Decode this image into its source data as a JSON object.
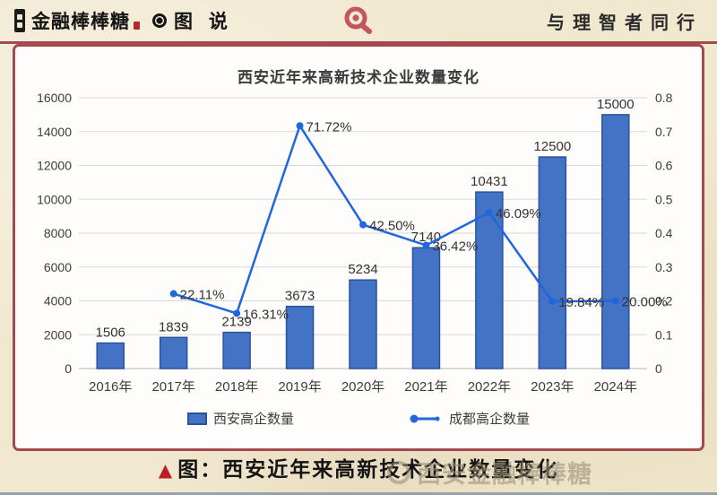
{
  "header": {
    "brand": "金融棒棒糖",
    "section": "图 说",
    "slogan": "与理智者同行"
  },
  "chart_data": {
    "type": "bar",
    "title": "西安近年来高新技术企业数量变化",
    "categories": [
      "2016年",
      "2017年",
      "2018年",
      "2019年",
      "2020年",
      "2021年",
      "2022年",
      "2023年",
      "2024年"
    ],
    "series": [
      {
        "name": "西安高企数量",
        "type": "bar",
        "axis": "left",
        "values": [
          1506,
          1839,
          2139,
          3673,
          5234,
          7140,
          10431,
          12500,
          15000
        ],
        "labels": [
          "1506",
          "1839",
          "2139",
          "3673",
          "5234",
          "7140",
          "10431",
          "12500",
          "15000"
        ],
        "color": "#4472c4",
        "border_color": "#2a539e"
      },
      {
        "name": "成都高企数量",
        "type": "line",
        "axis": "right",
        "values": [
          null,
          0.2211,
          0.1631,
          0.7172,
          0.425,
          0.3642,
          0.4609,
          0.1984,
          0.2
        ],
        "labels": [
          null,
          "22.11%",
          "16.31%",
          "71.72%",
          "42.50%",
          "36.42%",
          "46.09%",
          "19.84%",
          "20.00%"
        ],
        "color": "#2066dd"
      }
    ],
    "y_left": {
      "min": 0,
      "max": 16000,
      "ticks": [
        "0",
        "2000",
        "4000",
        "6000",
        "8000",
        "10000",
        "12000",
        "14000",
        "16000"
      ]
    },
    "y_right": {
      "min": 0,
      "max": 0.8,
      "ticks": [
        "0",
        "0.1",
        "0.2",
        "0.3",
        "0.4",
        "0.5",
        "0.6",
        "0.7",
        "0.8"
      ]
    },
    "grid": true,
    "legend_position": "bottom"
  },
  "caption": {
    "marker": "▲",
    "text": "图：西安近年来高新技术企业数量变化"
  },
  "watermark": {
    "text": "西安金融棒棒糖"
  },
  "colors": {
    "accent_maroon": "#a4494f",
    "bar_fill": "#4472c4",
    "bar_border": "#2a539e",
    "line_blue": "#2066dd",
    "background": "#f1e8d0",
    "gridline": "#d8d8d8"
  }
}
